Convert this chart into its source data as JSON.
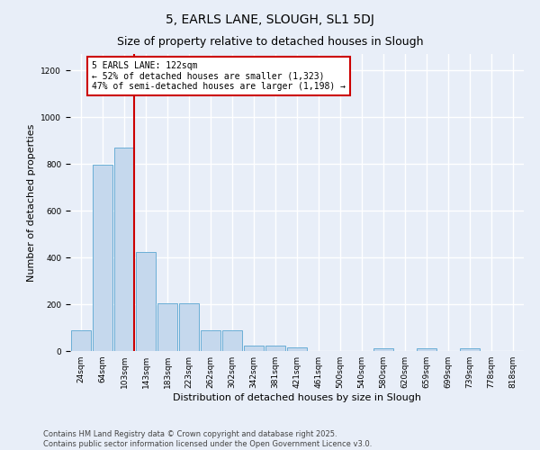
{
  "title": "5, EARLS LANE, SLOUGH, SL1 5DJ",
  "subtitle": "Size of property relative to detached houses in Slough",
  "xlabel": "Distribution of detached houses by size in Slough",
  "ylabel": "Number of detached properties",
  "bar_color": "#c5d8ed",
  "bar_edge_color": "#6aaed6",
  "background_color": "#e8eef8",
  "grid_color": "#ffffff",
  "bin_labels": [
    "24sqm",
    "64sqm",
    "103sqm",
    "143sqm",
    "183sqm",
    "223sqm",
    "262sqm",
    "302sqm",
    "342sqm",
    "381sqm",
    "421sqm",
    "461sqm",
    "500sqm",
    "540sqm",
    "580sqm",
    "620sqm",
    "659sqm",
    "699sqm",
    "739sqm",
    "778sqm",
    "818sqm"
  ],
  "values": [
    90,
    795,
    870,
    425,
    205,
    205,
    90,
    90,
    25,
    25,
    15,
    0,
    0,
    0,
    10,
    0,
    10,
    0,
    10,
    0,
    0
  ],
  "ylim": [
    0,
    1270
  ],
  "yticks": [
    0,
    200,
    400,
    600,
    800,
    1000,
    1200
  ],
  "property_line_color": "#cc0000",
  "annotation_text": "5 EARLS LANE: 122sqm\n← 52% of detached houses are smaller (1,323)\n47% of semi-detached houses are larger (1,198) →",
  "annotation_box_color": "#cc0000",
  "footer_line1": "Contains HM Land Registry data © Crown copyright and database right 2025.",
  "footer_line2": "Contains public sector information licensed under the Open Government Licence v3.0.",
  "title_fontsize": 10,
  "subtitle_fontsize": 9,
  "label_fontsize": 8,
  "tick_fontsize": 6.5,
  "annotation_fontsize": 7,
  "footer_fontsize": 6
}
